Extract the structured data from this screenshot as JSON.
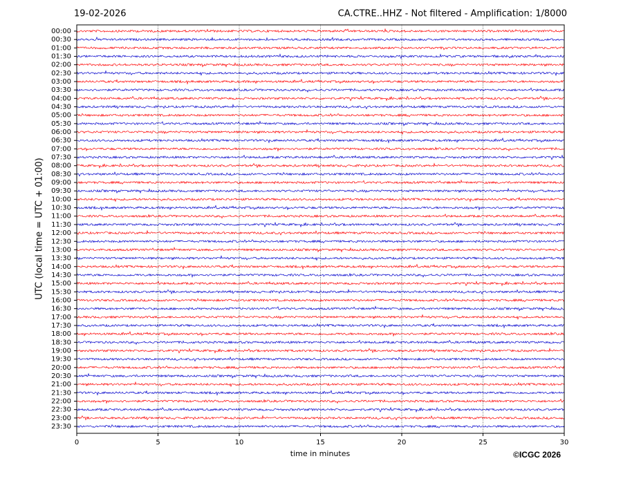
{
  "chart_data": {
    "type": "helicorder",
    "date": "19-02-2026",
    "title": "CA.CTRE..HHZ - Not filtered - Amplification: 1/8000",
    "xlabel": "time in minutes",
    "ylabel": "UTC (local time = UTC + 01:00)",
    "copyright": "©ICGC 2026",
    "categories": [
      "00:00",
      "00:30",
      "01:00",
      "01:30",
      "02:00",
      "02:30",
      "03:00",
      "03:30",
      "04:00",
      "04:30",
      "05:00",
      "05:30",
      "06:00",
      "06:30",
      "07:00",
      "07:30",
      "08:00",
      "08:30",
      "09:00",
      "09:30",
      "10:00",
      "10:30",
      "11:00",
      "11:30",
      "12:00",
      "12:30",
      "13:00",
      "13:30",
      "14:00",
      "14:30",
      "15:00",
      "15:30",
      "16:00",
      "16:30",
      "17:00",
      "17:30",
      "18:00",
      "18:30",
      "19:00",
      "19:30",
      "20:00",
      "20:30",
      "21:00",
      "21:30",
      "22:00",
      "22:30",
      "23:00",
      "23:30"
    ],
    "colors": [
      "#ff0000",
      "#0000cc"
    ],
    "xlim": [
      0,
      30
    ],
    "xticks": [
      0,
      5,
      10,
      15,
      20,
      25,
      30
    ],
    "grid": true
  }
}
